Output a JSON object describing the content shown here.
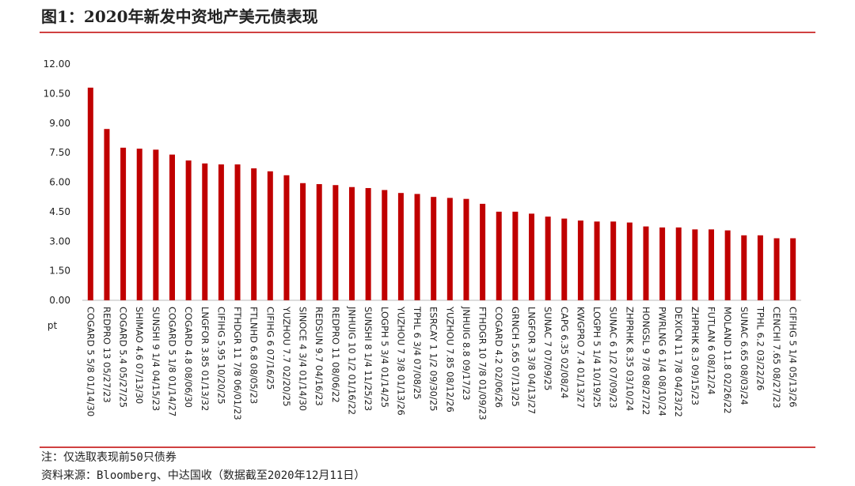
{
  "chart_data": {
    "type": "bar",
    "title": "图1：2020年新发中资地产美元债表现",
    "y_label": "pt",
    "notes": [
      "注：仅选取表现前50只债券",
      "资料来源：Bloomberg、中达国收（数据截至2020年12月11日）"
    ],
    "color": "#c00000",
    "categories": [
      "COGARD 5 5/8 01/14/30",
      "REDPRO 13 05/27/23",
      "COGARD 5.4 05/27/25",
      "SHIMAO 4.6 07/13/30",
      "SUNSHI 9 1/4 04/15/23",
      "COGARD 5 1/8 01/14/27",
      "COGARD 4.8 08/06/30",
      "LNGFOR 3.85 01/13/32",
      "CIFIHG 5.95 10/20/25",
      "FTHDGR 11 7/8 06/01/23",
      "FTLNHD 6.8 08/05/23",
      "CIFIHG 6 07/16/25",
      "YUZHOU 7.7 02/20/25",
      "SINOCE 4 3/4 01/14/30",
      "REDSUN 9.7 04/16/23",
      "REDPRO 11 08/06/22",
      "JNHUIG 10 1/2 01/16/22",
      "SUNSHI 8 1/4 11/25/23",
      "LOGPH 5 3/4 01/14/25",
      "YUZHOU 7 3/8 01/13/26",
      "TPHL 6 3/4 07/08/25",
      "ESRCAY 1 1/2 09/30/25",
      "YUZHOU 7.85 08/12/26",
      "JNHUIG 8.8 09/17/23",
      "FTHDGR 10 7/8 01/09/23",
      "COGARD 4.2 02/06/26",
      "GRNCH 5.65 07/13/25",
      "LNGFOR 3 3/8 04/13/27",
      "SUNAC 7 07/09/25",
      "CAPG 6.35 02/08/24",
      "KWGPRO 7.4 01/13/27",
      "LOGPH 5 1/4 10/19/25",
      "SUNAC 6 1/2 07/09/23",
      "ZHPRHK 8.35 03/10/24",
      "HONGSL 9 7/8 08/27/22",
      "PWRLNG 6 1/4 08/10/24",
      "DEXICN 11 7/8 04/23/22",
      "ZHPRHK 8.3 09/15/23",
      "FUTLAN 6 08/12/24",
      "MOLAND 11.8 02/26/22",
      "SUNAC 6.65 08/03/24",
      "TPHL 6.2 03/22/26",
      "CENCHI 7.65 08/27/23",
      "CIFIHG 5 1/4 05/13/26"
    ],
    "values": [
      10.8,
      8.7,
      7.75,
      7.7,
      7.65,
      7.4,
      7.1,
      6.95,
      6.9,
      6.9,
      6.7,
      6.55,
      6.35,
      5.95,
      5.9,
      5.85,
      5.75,
      5.7,
      5.6,
      5.45,
      5.4,
      5.25,
      5.2,
      5.15,
      4.9,
      4.5,
      4.5,
      4.4,
      4.25,
      4.15,
      4.05,
      4.0,
      4.0,
      3.95,
      3.75,
      3.7,
      3.7,
      3.6,
      3.6,
      3.55,
      3.3,
      3.3,
      3.15,
      3.15
    ],
    "ylim": [
      0,
      12
    ],
    "yticks": [
      {
        "value": 0,
        "label": "0.00"
      },
      {
        "value": 1.5,
        "label": "1.50"
      },
      {
        "value": 3,
        "label": "3.00"
      },
      {
        "value": 4.5,
        "label": "4.50"
      },
      {
        "value": 6,
        "label": "6.00"
      },
      {
        "value": 7.5,
        "label": "7.50"
      },
      {
        "value": 9,
        "label": "9.00"
      },
      {
        "value": 10.5,
        "label": "10.50"
      },
      {
        "value": 12,
        "label": "12.00"
      }
    ],
    "grid": false
  }
}
